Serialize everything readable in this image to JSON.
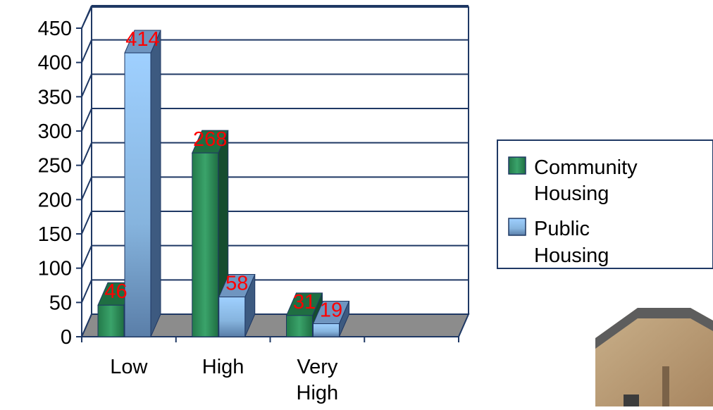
{
  "chart_data": {
    "type": "bar",
    "title": "",
    "xlabel": "",
    "ylabel": "",
    "categories": [
      "Low",
      "High",
      "Very High"
    ],
    "ylim": [
      0,
      450
    ],
    "yticks": [
      "0",
      "50",
      "100",
      "150",
      "200",
      "250",
      "300",
      "350",
      "400",
      "450"
    ],
    "grid": true,
    "legend_position": "right",
    "series": [
      {
        "name": "Community Housing",
        "values": [
          46,
          268,
          31
        ],
        "color": "#2e8b57"
      },
      {
        "name": "Public Housing",
        "values": [
          414,
          58,
          19
        ],
        "color": "#8fc3f5"
      }
    ],
    "data_label_color": "#ff0000"
  },
  "legend": {
    "items": [
      {
        "line1": "Community",
        "line2": "Housing"
      },
      {
        "line1": "Public",
        "line2": "Housing"
      }
    ]
  },
  "photo": {
    "subject": "house-photo"
  }
}
